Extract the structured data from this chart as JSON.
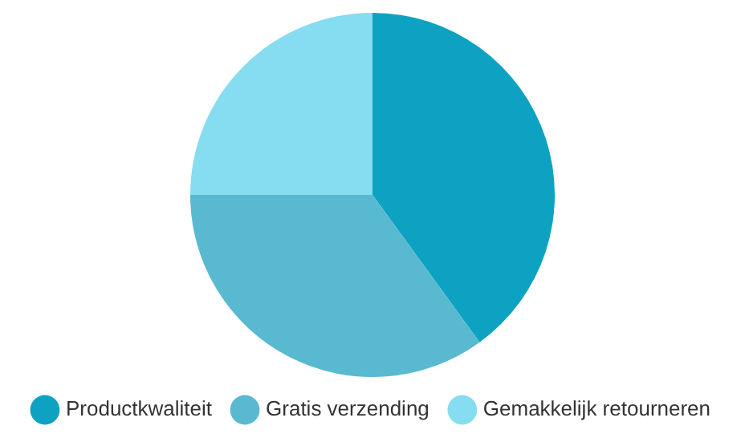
{
  "chart_data": {
    "type": "pie",
    "categories": [
      "Productkwaliteit",
      "Gratis verzending",
      "Gemakkelijk retourneren"
    ],
    "values": [
      40,
      35,
      25
    ],
    "colors": [
      "#0ea2c2",
      "#58b9d0",
      "#86dcf0"
    ],
    "legend": "bottom"
  }
}
